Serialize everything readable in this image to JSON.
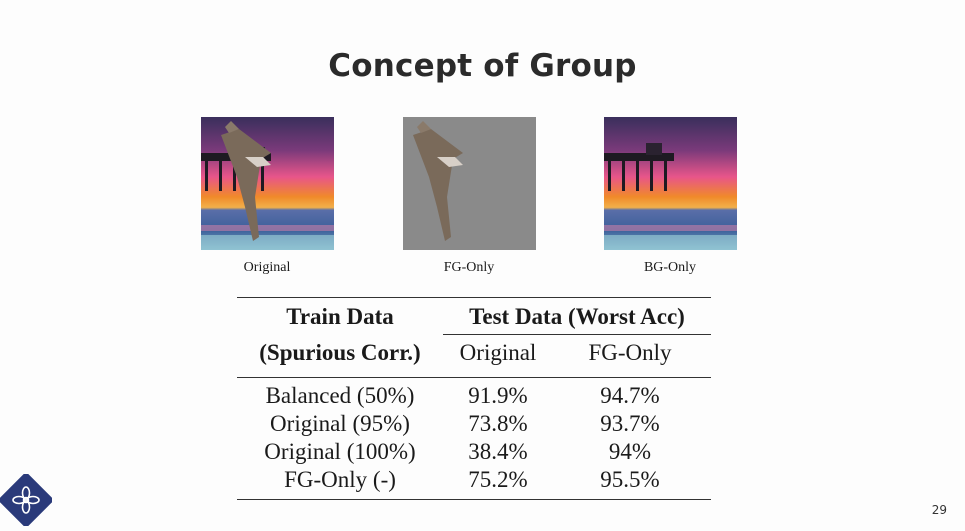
{
  "slide": {
    "title": "Concept of Group",
    "page_number": "29"
  },
  "images": [
    {
      "caption": "Original"
    },
    {
      "caption": "FG-Only"
    },
    {
      "caption": "BG-Only"
    }
  ],
  "table": {
    "header_col1_line1": "Train Data",
    "header_col1_line2": "(Spurious Corr.)",
    "header_group": "Test Data (Worst Acc)",
    "subheaders": [
      "Original",
      "FG-Only"
    ],
    "rows": [
      {
        "train": "Balanced (50%)",
        "original": "91.9%",
        "fg_only": "94.7%"
      },
      {
        "train": "Original (95%)",
        "original": "73.8%",
        "fg_only": "93.7%"
      },
      {
        "train": "Original (100%)",
        "original": "38.4%",
        "fg_only": "94%"
      },
      {
        "train": "FG-Only (-)",
        "original": "75.2%",
        "fg_only": "95.5%"
      }
    ]
  },
  "colors": {
    "sky_top": "#3a2f5c",
    "sunset_orange": "#f08a2a",
    "sunset_pink": "#e8558a",
    "sea_blue": "#3c5f9a",
    "fg_background": "#8a8a8a",
    "bird": "#7a6a5a"
  }
}
